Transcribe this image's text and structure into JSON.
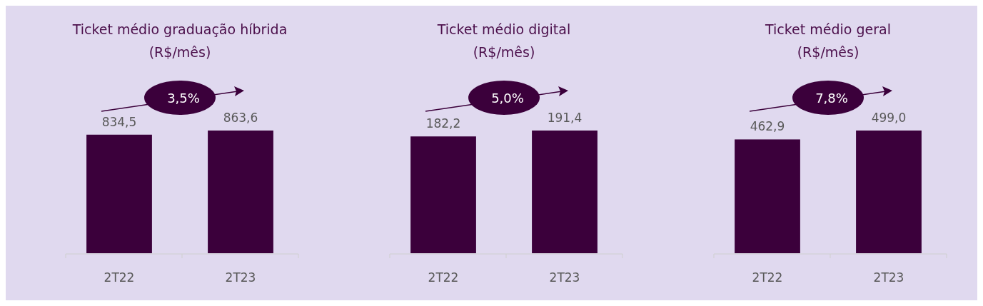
{
  "chart_data": [
    {
      "type": "bar",
      "title": "Ticket médio graduação híbrida",
      "subtitle": "(R$/mês)",
      "categories": [
        "2T22",
        "2T23"
      ],
      "values": [
        834.5,
        863.6
      ],
      "value_labels": [
        "834,5",
        "863,6"
      ],
      "color": "#3b003b",
      "annotations": [
        "3,5%"
      ]
    },
    {
      "type": "bar",
      "title": "Ticket médio digital",
      "subtitle": "(R$/mês)",
      "categories": [
        "2T22",
        "2T23"
      ],
      "values": [
        182.2,
        191.4
      ],
      "value_labels": [
        "182,2",
        "191,4"
      ],
      "color": "#3b003b",
      "annotations": [
        "5,0%"
      ]
    },
    {
      "type": "bar",
      "title": "Ticket médio geral",
      "subtitle": "(R$/mês)",
      "categories": [
        "2T22",
        "2T23"
      ],
      "values": [
        462.9,
        499.0
      ],
      "value_labels": [
        "462,9",
        "499,0"
      ],
      "color": "#3b003b",
      "annotations": [
        "7,8%"
      ]
    }
  ]
}
